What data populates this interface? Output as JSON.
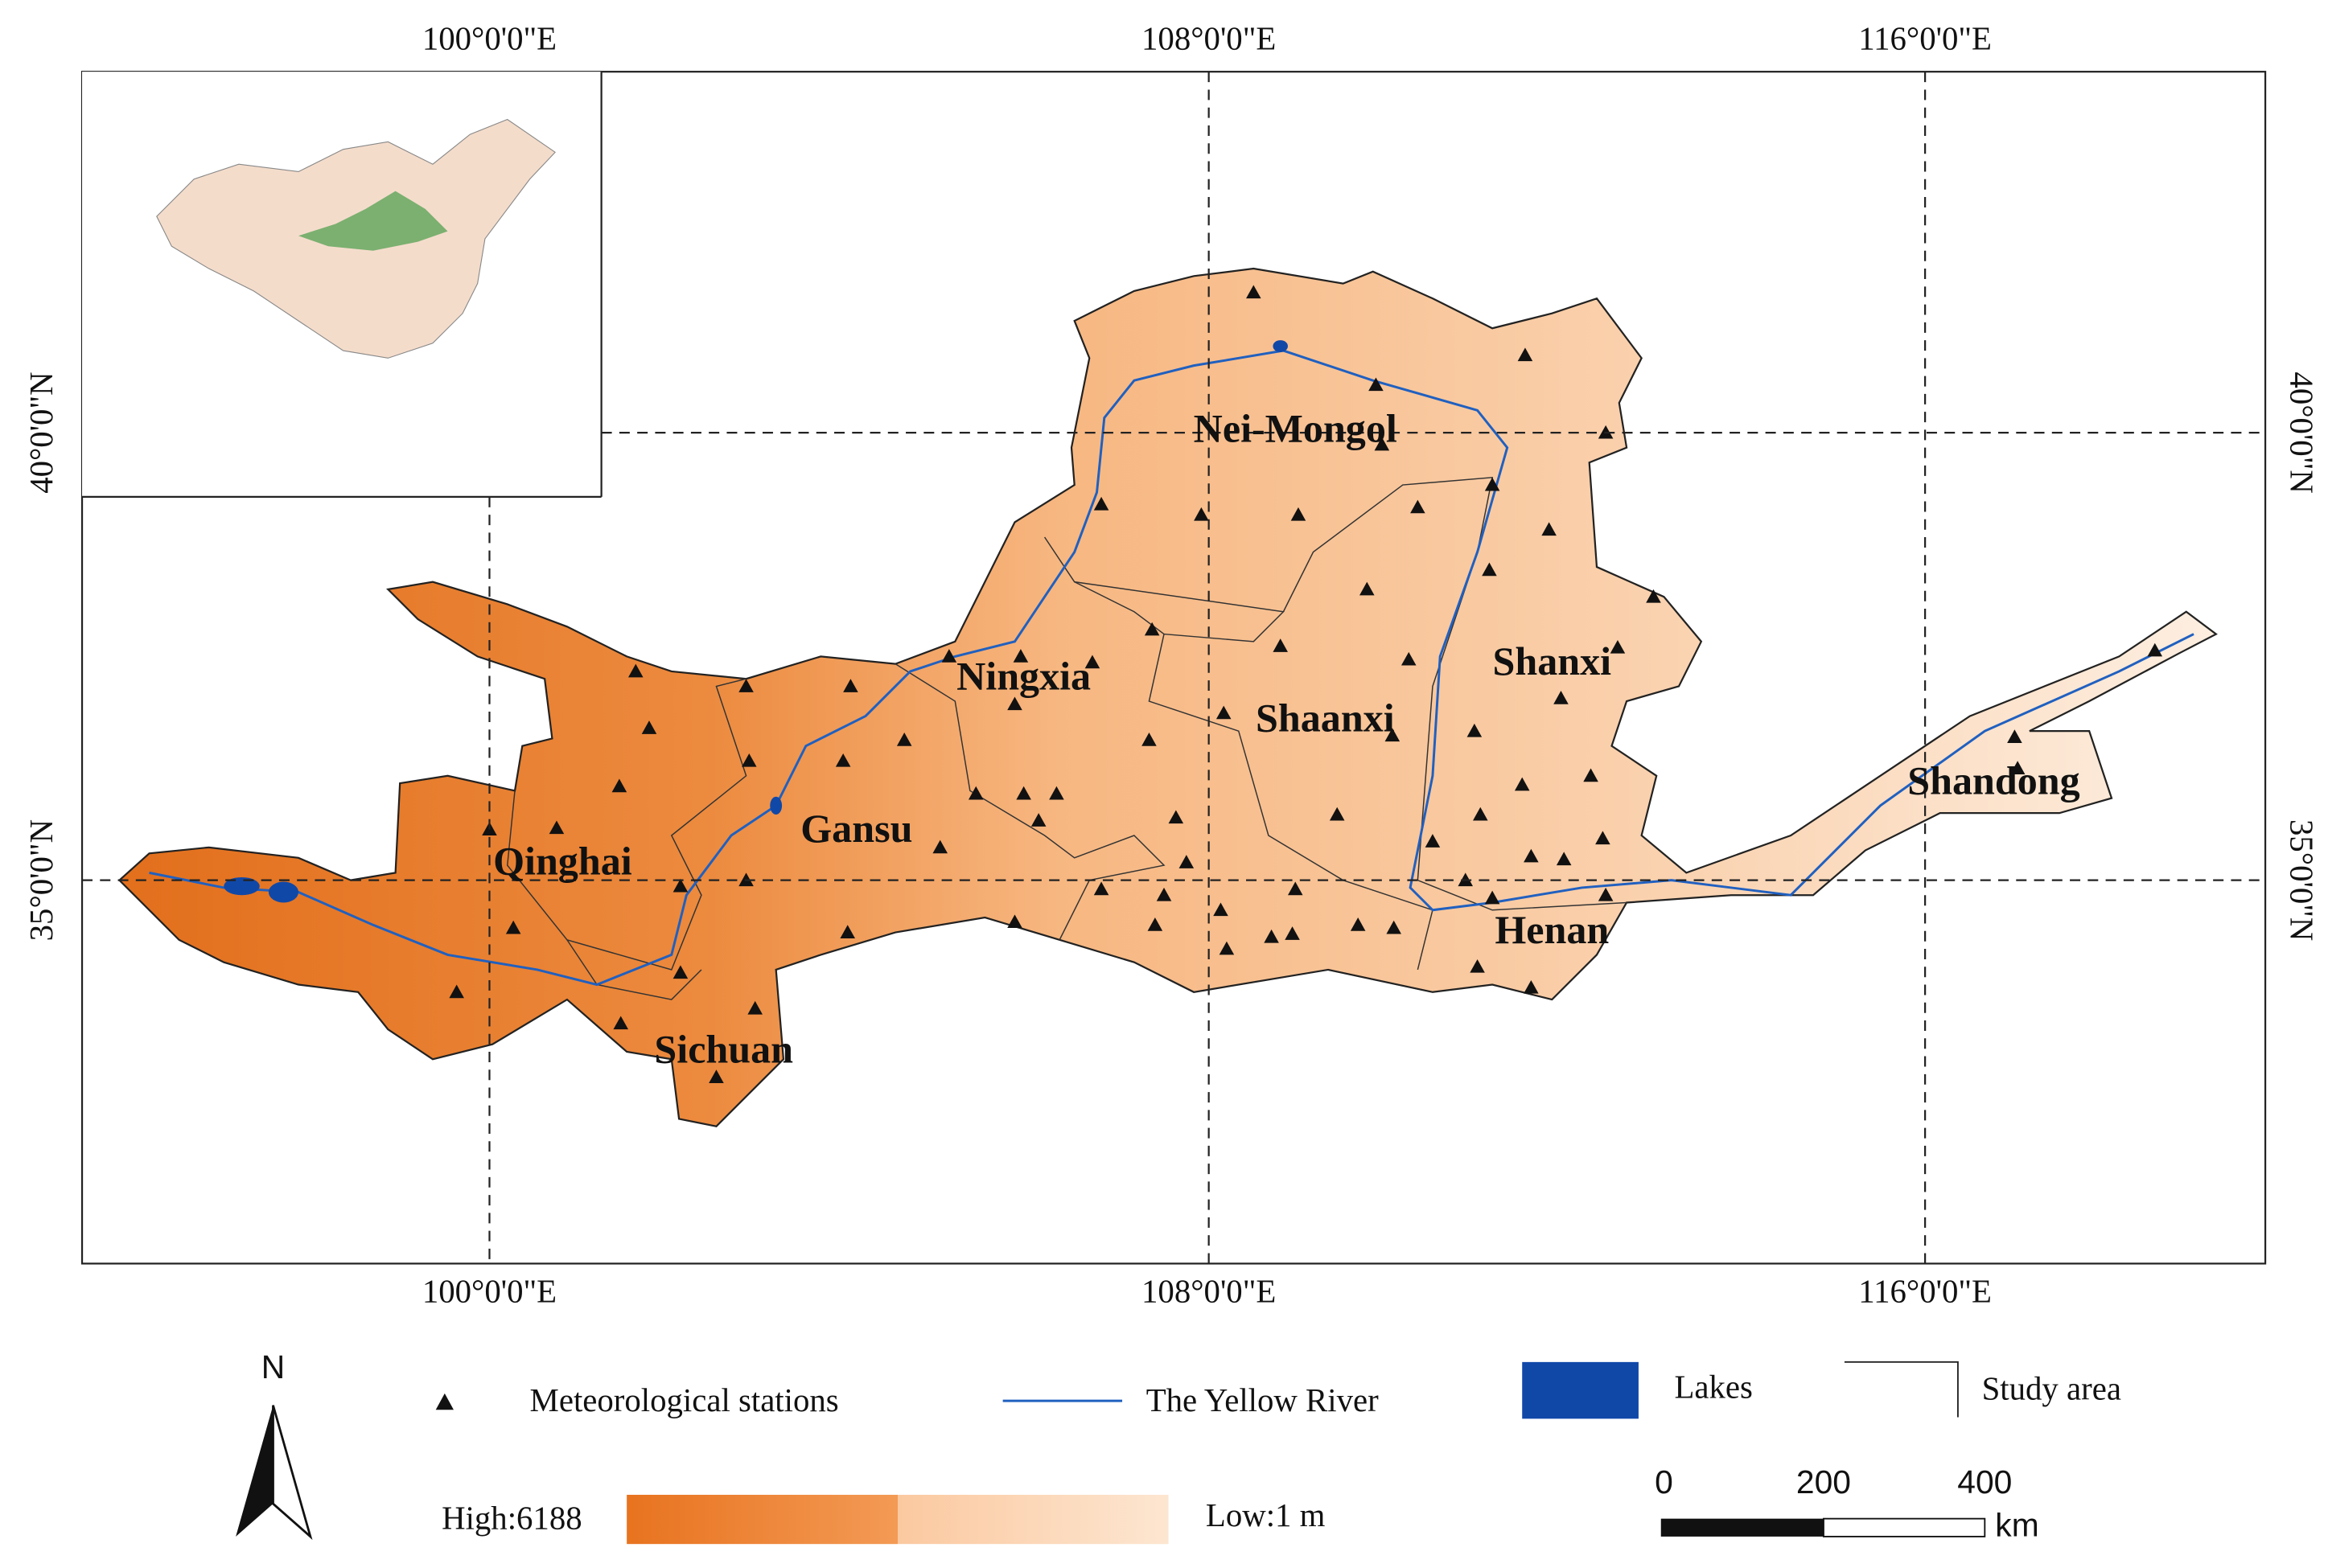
{
  "map": {
    "longitude_labels_top": [
      "100°0'0\"E",
      "108°0'0\"E",
      "116°0'0\"E"
    ],
    "longitude_labels_bottom": [
      "100°0'0\"E",
      "108°0'0\"E",
      "116°0'0\"E"
    ],
    "latitude_labels_left": [
      "40°0'0\"N",
      "35°0'0\"N"
    ],
    "latitude_labels_right": [
      "40°0'0\"N",
      "35°0'0\"N"
    ],
    "regions": [
      "Nei-Mongol",
      "Ningxia",
      "Shaanxi",
      "Shanxi",
      "Shandong",
      "Gansu",
      "Qinghai",
      "Henan",
      "Sichuan"
    ],
    "legend": {
      "stations": "Meteorological stations",
      "river": "The Yellow River",
      "lakes": "Lakes",
      "study_area": "Study area"
    },
    "elevation": {
      "high": "High:6188",
      "low": "Low:1 m"
    },
    "scale_bar": {
      "ticks": [
        "0",
        "200",
        "400"
      ],
      "unit": "km"
    },
    "north": "N"
  }
}
